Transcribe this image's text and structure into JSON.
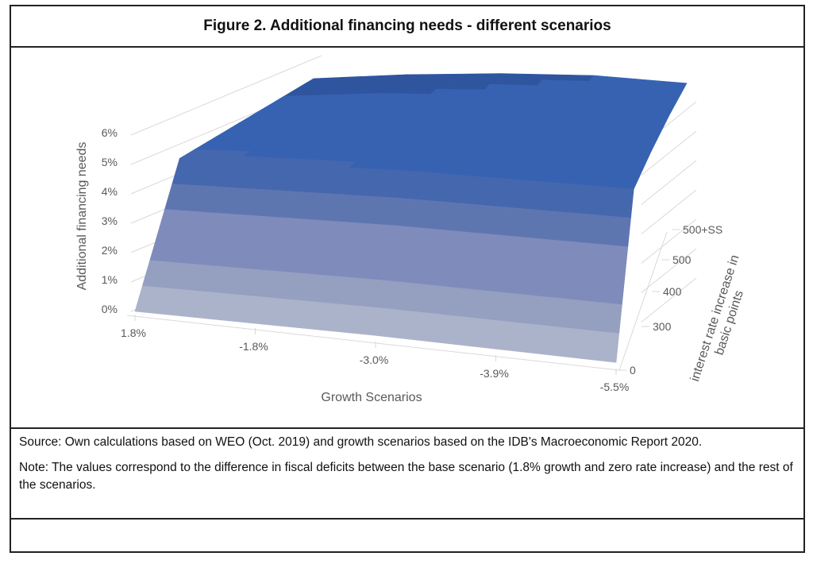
{
  "title": "Figure 2. Additional financing needs - different scenarios",
  "source": "Source: Own calculations based on WEO (Oct. 2019) and growth scenarios based on the IDB's Macroeconomic Report 2020.",
  "note": "Note: The values correspond to the difference in fiscal deficits between the base scenario (1.8% growth and zero rate increase) and the rest of the scenarios.",
  "chart_data": {
    "type": "surface",
    "title": "",
    "xlabel": "Growth Scenarios",
    "ylabel": "interest rate increase in basic points",
    "zlabel": "Additional financing needs",
    "x_categories": [
      "1.8%",
      "-1.8%",
      "-3.0%",
      "-3.9%",
      "-5.5%"
    ],
    "y_categories": [
      "0",
      "300",
      "400",
      "500",
      "500+SS"
    ],
    "z_ticks": [
      "0%",
      "1%",
      "2%",
      "3%",
      "4%",
      "5%",
      "6%"
    ],
    "zlim": [
      0,
      7
    ],
    "values_percent": [
      [
        0.0,
        0.05,
        0.1,
        0.1,
        0.1
      ],
      [
        4.8,
        4.9,
        5.0,
        5.0,
        5.0
      ],
      [
        5.3,
        5.5,
        5.5,
        5.4,
        5.3
      ],
      [
        5.8,
        5.9,
        5.8,
        5.7,
        5.5
      ],
      [
        6.3,
        6.3,
        6.2,
        6.0,
        5.6
      ]
    ],
    "band_colors": [
      "#aab3c9",
      "#959fc0",
      "#7f8bbb",
      "#5e76b0",
      "#4567ae",
      "#3762b2",
      "#2f559f"
    ]
  }
}
